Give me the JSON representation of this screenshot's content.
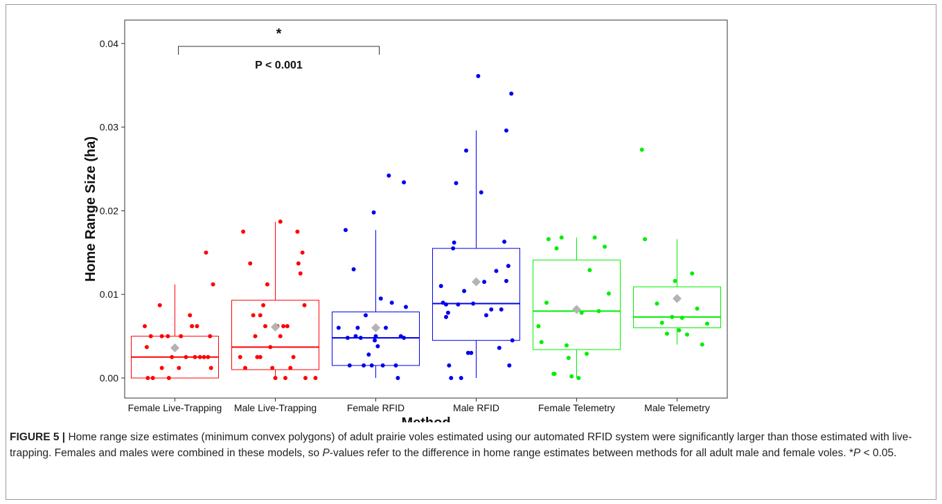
{
  "chart_data": {
    "type": "box",
    "xlabel": "Method",
    "ylabel": "Home Range Size (ha)",
    "ylim": [
      -0.0024,
      0.0428
    ],
    "yticks": [
      0.0,
      0.01,
      0.02,
      0.03,
      0.04
    ],
    "ytick_labels": [
      "0.00",
      "0.01",
      "0.02",
      "0.03",
      "0.04"
    ],
    "grid": false,
    "legend": "none",
    "mean_marker_color": "#b3b3b3",
    "categories": [
      "Female Live-Trapping",
      "Male Live-Trapping",
      "Female RFID",
      "Male RFID",
      "Female Telemetry",
      "Male Telemetry"
    ],
    "groups": [
      {
        "name": "Female Live-Trapping",
        "color": "#ff0000",
        "q1": 0.0,
        "median": 0.0025,
        "q3": 0.005,
        "whisker_low": 0.0,
        "whisker_high": 0.0112,
        "mean": 0.0036,
        "points": [
          [
            -0.3,
            0.0062
          ],
          [
            -0.28,
            0.0037
          ],
          [
            -0.27,
            0.0
          ],
          [
            -0.24,
            0.005
          ],
          [
            -0.22,
            0.0
          ],
          [
            -0.15,
            0.0087
          ],
          [
            -0.13,
            0.005
          ],
          [
            -0.13,
            0.0012
          ],
          [
            -0.07,
            0.005
          ],
          [
            -0.06,
            0.0
          ],
          [
            -0.03,
            0.0025
          ],
          [
            0.04,
            0.0012
          ],
          [
            0.06,
            0.005
          ],
          [
            0.11,
            0.0025
          ],
          [
            0.15,
            0.0075
          ],
          [
            0.17,
            0.0062
          ],
          [
            0.2,
            0.0025
          ],
          [
            0.22,
            0.0062
          ],
          [
            0.25,
            0.0025
          ],
          [
            0.29,
            0.0025
          ],
          [
            0.31,
            0.015
          ],
          [
            0.33,
            0.0025
          ],
          [
            0.35,
            0.005
          ],
          [
            0.36,
            0.0012
          ],
          [
            0.38,
            0.0112
          ]
        ]
      },
      {
        "name": "Male Live-Trapping",
        "color": "#ff0000",
        "q1": 0.001,
        "median": 0.0037,
        "q3": 0.0093,
        "whisker_low": 0.0,
        "whisker_high": 0.0187,
        "mean": 0.0061,
        "points": [
          [
            -0.35,
            0.0025
          ],
          [
            -0.32,
            0.0175
          ],
          [
            -0.3,
            0.0012
          ],
          [
            -0.25,
            0.0137
          ],
          [
            -0.22,
            0.0075
          ],
          [
            -0.2,
            0.005
          ],
          [
            -0.18,
            0.0025
          ],
          [
            -0.15,
            0.0025
          ],
          [
            -0.12,
            0.0087
          ],
          [
            -0.1,
            0.0062
          ],
          [
            -0.08,
            0.0112
          ],
          [
            -0.05,
            0.0037
          ],
          [
            -0.03,
            0.0012
          ],
          [
            0.0,
            0.0
          ],
          [
            0.02,
            0.0062
          ],
          [
            0.05,
            0.005
          ],
          [
            0.08,
            0.0062
          ],
          [
            0.1,
            0.0
          ],
          [
            0.12,
            0.0062
          ],
          [
            0.15,
            0.0012
          ],
          [
            0.18,
            0.0025
          ],
          [
            0.22,
            0.0175
          ],
          [
            0.23,
            0.0137
          ],
          [
            0.25,
            0.0125
          ],
          [
            0.27,
            0.015
          ],
          [
            0.29,
            0.0087
          ],
          [
            0.3,
            0.0
          ],
          [
            0.4,
            0.0
          ],
          [
            0.05,
            0.0187
          ],
          [
            -0.15,
            0.0075
          ]
        ]
      },
      {
        "name": "Female RFID",
        "color": "#0000ee",
        "q1": 0.0015,
        "median": 0.0048,
        "q3": 0.0079,
        "whisker_low": 0.0,
        "whisker_high": 0.0177,
        "mean": 0.006,
        "points": [
          [
            -0.37,
            0.006
          ],
          [
            -0.3,
            0.0177
          ],
          [
            -0.28,
            0.0048
          ],
          [
            -0.26,
            0.0015
          ],
          [
            -0.22,
            0.013
          ],
          [
            -0.2,
            0.005
          ],
          [
            -0.18,
            0.006
          ],
          [
            -0.15,
            0.0048
          ],
          [
            -0.12,
            0.0015
          ],
          [
            -0.1,
            0.0075
          ],
          [
            -0.07,
            0.0028
          ],
          [
            -0.04,
            0.0015
          ],
          [
            -0.02,
            0.0198
          ],
          [
            0.0,
            0.005
          ],
          [
            0.02,
            0.0038
          ],
          [
            0.05,
            0.0095
          ],
          [
            0.07,
            0.0015
          ],
          [
            0.1,
            0.006
          ],
          [
            0.13,
            0.0242
          ],
          [
            0.16,
            0.009
          ],
          [
            0.2,
            0.0015
          ],
          [
            0.22,
            0.0
          ],
          [
            0.25,
            0.005
          ],
          [
            0.28,
            0.0234
          ],
          [
            0.3,
            0.0085
          ],
          [
            0.28,
            0.0048
          ],
          [
            -0.01,
            0.0045
          ]
        ]
      },
      {
        "name": "Male RFID",
        "color": "#0000ee",
        "q1": 0.0045,
        "median": 0.0089,
        "q3": 0.0155,
        "whisker_low": 0.0,
        "whisker_high": 0.0296,
        "mean": 0.0115,
        "points": [
          [
            -0.35,
            0.011
          ],
          [
            -0.33,
            0.009
          ],
          [
            -0.3,
            0.0073
          ],
          [
            -0.28,
            0.0078
          ],
          [
            -0.27,
            0.0015
          ],
          [
            -0.25,
            0.0
          ],
          [
            -0.23,
            0.0155
          ],
          [
            -0.22,
            0.0162
          ],
          [
            -0.2,
            0.0233
          ],
          [
            -0.18,
            0.0088
          ],
          [
            -0.15,
            0.0
          ],
          [
            -0.12,
            0.0104
          ],
          [
            -0.1,
            0.0272
          ],
          [
            -0.08,
            0.003
          ],
          [
            -0.05,
            0.003
          ],
          [
            -0.03,
            0.0089
          ],
          [
            0.02,
            0.0361
          ],
          [
            0.05,
            0.0222
          ],
          [
            0.08,
            0.0115
          ],
          [
            0.1,
            0.0075
          ],
          [
            0.15,
            0.0082
          ],
          [
            0.2,
            0.0128
          ],
          [
            0.25,
            0.0082
          ],
          [
            0.28,
            0.0163
          ],
          [
            0.3,
            0.0296
          ],
          [
            0.32,
            0.0134
          ],
          [
            0.35,
            0.034
          ],
          [
            0.36,
            0.0045
          ],
          [
            0.33,
            0.0015
          ],
          [
            0.3,
            0.0116
          ],
          [
            0.23,
            0.0036
          ],
          [
            -0.3,
            0.0088
          ]
        ]
      },
      {
        "name": "Female Telemetry",
        "color": "#00ee00",
        "q1": 0.0034,
        "median": 0.008,
        "q3": 0.0141,
        "whisker_low": 0.0,
        "whisker_high": 0.0168,
        "mean": 0.0082,
        "points": [
          [
            -0.38,
            0.0062
          ],
          [
            -0.35,
            0.0043
          ],
          [
            -0.3,
            0.009
          ],
          [
            -0.28,
            0.0166
          ],
          [
            -0.22,
            0.0005
          ],
          [
            -0.2,
            0.0155
          ],
          [
            -0.15,
            0.0168
          ],
          [
            -0.1,
            0.0039
          ],
          [
            -0.08,
            0.0024
          ],
          [
            -0.05,
            0.0002
          ],
          [
            0.02,
            0.0
          ],
          [
            0.05,
            0.0078
          ],
          [
            0.1,
            0.0029
          ],
          [
            0.13,
            0.0129
          ],
          [
            0.18,
            0.0168
          ],
          [
            0.22,
            0.008
          ],
          [
            0.28,
            0.0157
          ],
          [
            0.32,
            0.0101
          ],
          [
            -0.23,
            0.0005
          ]
        ]
      },
      {
        "name": "Male Telemetry",
        "color": "#00ee00",
        "q1": 0.006,
        "median": 0.0073,
        "q3": 0.0109,
        "whisker_low": 0.004,
        "whisker_high": 0.0166,
        "mean": 0.0095,
        "points": [
          [
            -0.35,
            0.0273
          ],
          [
            -0.32,
            0.0166
          ],
          [
            -0.2,
            0.0089
          ],
          [
            -0.15,
            0.0066
          ],
          [
            -0.1,
            0.0053
          ],
          [
            -0.05,
            0.0073
          ],
          [
            -0.02,
            0.0116
          ],
          [
            0.02,
            0.0057
          ],
          [
            0.05,
            0.0072
          ],
          [
            0.1,
            0.0052
          ],
          [
            0.15,
            0.0125
          ],
          [
            0.2,
            0.0083
          ],
          [
            0.25,
            0.004
          ],
          [
            0.3,
            0.0065
          ]
        ]
      }
    ],
    "annotations": {
      "significance_star": "*",
      "p_value_text": "P < 0.001",
      "bracket_from": 0,
      "bracket_to": 2
    }
  },
  "caption": {
    "figure_label": "FIGURE 5 |",
    "text_a": " Home range size estimates (minimum convex polygons) of adult prairie voles estimated using our automated RFID system were significantly larger than those estimated with live-trapping. Females and males were combined in these models, so ",
    "p_italic": "P",
    "text_b": "-values refer to the difference in home range estimates between methods for all adult male and female voles. *",
    "p_italic_2": "P",
    "text_c": " < 0.05."
  }
}
